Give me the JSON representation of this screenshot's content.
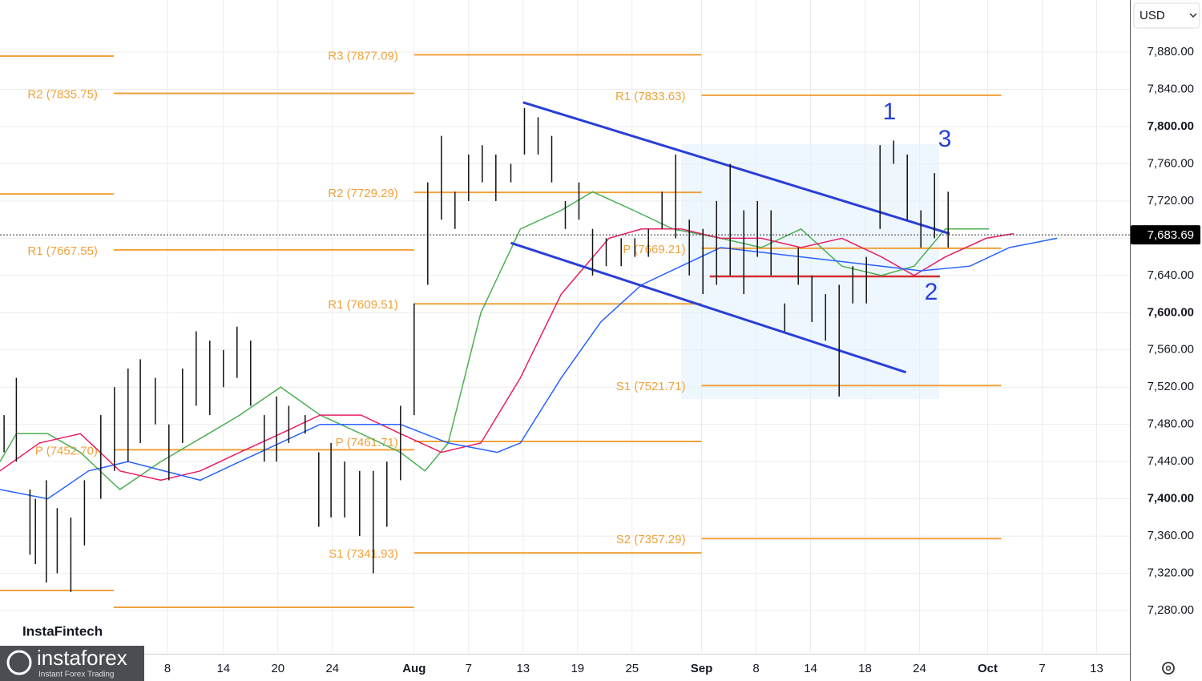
{
  "chart_data": {
    "type": "ohlc",
    "currency": "USD",
    "ylim": [
      7234.4,
      7936
    ],
    "yticks": [
      {
        "value": 7280,
        "label": "7,280.00"
      },
      {
        "value": 7320,
        "label": "7,320.00"
      },
      {
        "value": 7360,
        "label": "7,360.00"
      },
      {
        "value": 7400,
        "label": "7,400.00"
      },
      {
        "value": 7440,
        "label": "7,440.00"
      },
      {
        "value": 7480,
        "label": "7,480.00"
      },
      {
        "value": 7520,
        "label": "7,520.00"
      },
      {
        "value": 7560,
        "label": "7,560.00"
      },
      {
        "value": 7600,
        "label": "7,600.00"
      },
      {
        "value": 7640,
        "label": "7,640.00"
      },
      {
        "value": 7680,
        "label": "7,680.00"
      },
      {
        "value": 7720,
        "label": "7,720.00"
      },
      {
        "value": 7760,
        "label": "7,760.00"
      },
      {
        "value": 7800,
        "label": "7,800.00"
      },
      {
        "value": 7840,
        "label": "7,840.00"
      },
      {
        "value": 7880,
        "label": "7,880.00"
      }
    ],
    "xlim": [
      0,
      83
    ],
    "xticks": [
      {
        "value": 12.3,
        "label": "8"
      },
      {
        "value": 16.4,
        "label": "14"
      },
      {
        "value": 20.4,
        "label": "20"
      },
      {
        "value": 24.4,
        "label": "24"
      },
      {
        "value": 30.4,
        "label": "Aug"
      },
      {
        "value": 34.4,
        "label": "7"
      },
      {
        "value": 38.4,
        "label": "13"
      },
      {
        "value": 42.4,
        "label": "19"
      },
      {
        "value": 46.4,
        "label": "25"
      },
      {
        "value": 51.5,
        "label": "Sep"
      },
      {
        "value": 55.5,
        "label": "8"
      },
      {
        "value": 59.5,
        "label": "14"
      },
      {
        "value": 63.5,
        "label": "18"
      },
      {
        "value": 67.5,
        "label": "24"
      },
      {
        "value": 72.5,
        "label": "Oct"
      },
      {
        "value": 76.5,
        "label": "7"
      },
      {
        "value": 80.5,
        "label": "13"
      }
    ],
    "grid": true,
    "bar_color": "#111111",
    "bars": {
      "x": [
        0.3,
        1.2,
        2.2,
        2.6,
        3.4,
        4.2,
        5.2,
        6.2,
        7.4,
        8.4,
        9.4,
        10.3,
        11.4,
        12.4,
        13.4,
        14.4,
        15.4,
        16.4,
        17.4,
        18.4,
        19.4,
        20.3,
        21.2,
        22.4,
        23.4,
        24.3,
        25.3,
        26.4,
        27.4,
        28.4,
        29.4,
        30.4,
        31.4,
        32.4,
        33.4,
        34.4,
        35.4,
        36.4,
        37.5,
        38.5,
        39.5,
        40.5,
        41.5,
        42.5,
        43.5,
        44.5,
        45.6,
        46.6,
        47.6,
        48.6,
        49.6,
        50.6,
        51.6,
        52.6,
        53.6,
        54.6,
        55.6,
        56.6,
        57.6,
        58.6,
        59.6,
        60.6,
        61.6,
        62.6,
        63.6,
        64.6,
        65.6,
        66.6,
        67.6,
        68.6,
        69.6
      ],
      "high": [
        7490,
        7530,
        7410,
        7400,
        7420,
        7390,
        7380,
        7420,
        7490,
        7520,
        7540,
        7550,
        7530,
        7480,
        7540,
        7580,
        7570,
        7560,
        7585,
        7570,
        7490,
        7510,
        7500,
        7490,
        7450,
        7460,
        7440,
        7430,
        7430,
        7440,
        7500,
        7610,
        7740,
        7790,
        7730,
        7770,
        7780,
        7770,
        7760,
        7820,
        7810,
        7790,
        7720,
        7740,
        7690,
        7680,
        7680,
        7680,
        7690,
        7730,
        7770,
        7700,
        7690,
        7720,
        7760,
        7710,
        7720,
        7710,
        7610,
        7670,
        7640,
        7620,
        7630,
        7650,
        7660,
        7780,
        7785,
        7770,
        7710,
        7750,
        7730
      ],
      "low": [
        7450,
        7440,
        7340,
        7330,
        7310,
        7320,
        7300,
        7350,
        7400,
        7430,
        7440,
        7460,
        7480,
        7420,
        7460,
        7500,
        7490,
        7520,
        7530,
        7500,
        7440,
        7440,
        7460,
        7470,
        7370,
        7380,
        7380,
        7360,
        7320,
        7370,
        7420,
        7490,
        7630,
        7700,
        7690,
        7720,
        7740,
        7720,
        7740,
        7770,
        7770,
        7740,
        7690,
        7700,
        7640,
        7650,
        7650,
        7660,
        7660,
        7690,
        7680,
        7640,
        7620,
        7630,
        7640,
        7620,
        7660,
        7640,
        7580,
        7630,
        7590,
        7570,
        7510,
        7610,
        7610,
        7690,
        7760,
        7700,
        7670,
        7680,
        7670
      ]
    },
    "moving_averages": [
      {
        "color": "#4caf50",
        "x": [
          0,
          1.2,
          3.5,
          5.9,
          8.8,
          11.8,
          15.3,
          17.6,
          20.6,
          23.5,
          26.5,
          29.4,
          31.2,
          32.9,
          35.3,
          38.2,
          41.2,
          43.5,
          46.5,
          49.4,
          52.9,
          55.9,
          58.8,
          61.8,
          64.7,
          67.1,
          69.4,
          72.6
        ],
        "values": [
          7440,
          7470,
          7470,
          7450,
          7410,
          7440,
          7470,
          7490,
          7520,
          7490,
          7470,
          7450,
          7430,
          7460,
          7600,
          7690,
          7710,
          7730,
          7710,
          7690,
          7680,
          7670,
          7690,
          7650,
          7640,
          7650,
          7690,
          7690
        ]
      },
      {
        "color": "#e91e63",
        "x": [
          0,
          2.9,
          5.9,
          8.8,
          11.8,
          14.7,
          17.6,
          20.6,
          23.5,
          26.5,
          29.4,
          32.4,
          35.3,
          38.2,
          41.2,
          44.7,
          47.1,
          50,
          52.9,
          55.9,
          58.8,
          61.8,
          64.7,
          67.1,
          69.4,
          72.4,
          74.4
        ],
        "values": [
          7430,
          7460,
          7470,
          7430,
          7420,
          7430,
          7450,
          7470,
          7490,
          7490,
          7470,
          7450,
          7460,
          7530,
          7620,
          7680,
          7690,
          7690,
          7680,
          7680,
          7670,
          7680,
          7660,
          7640,
          7660,
          7680,
          7685
        ]
      },
      {
        "color": "#2962ff",
        "x": [
          0,
          3.5,
          6.5,
          9.4,
          14.7,
          17.6,
          23.5,
          29.4,
          32.9,
          36.5,
          38.2,
          41.2,
          44.1,
          47.1,
          50,
          52.9,
          58.8,
          64.7,
          67.6,
          71.2,
          74.1,
          77.6
        ],
        "values": [
          7410,
          7400,
          7430,
          7440,
          7420,
          7440,
          7480,
          7480,
          7460,
          7450,
          7460,
          7530,
          7590,
          7630,
          7650,
          7670,
          7660,
          7650,
          7645,
          7650,
          7670,
          7680
        ]
      }
    ],
    "trendlines": [
      {
        "color": "#2a3fd6",
        "x": [
          38.4,
          69.7
        ],
        "values": [
          7826,
          7685
        ]
      },
      {
        "color": "#2a3fd6",
        "x": [
          37.5,
          66.5
        ],
        "values": [
          7675,
          7536
        ]
      }
    ],
    "pivot_color": "#f0a23a",
    "pivots": [
      {
        "value": 7875.7,
        "x": [
          0,
          8.35
        ]
      },
      {
        "value": 7727.6,
        "x": [
          0,
          8.35
        ]
      },
      {
        "value": 7301.5,
        "x": [
          0,
          8.35
        ]
      },
      {
        "label": "R2 (7835.75)",
        "value": 7835.75,
        "x": [
          8.35,
          30.4
        ]
      },
      {
        "label": "R1 (7667.55)",
        "value": 7667.55,
        "x": [
          8.35,
          30.4
        ]
      },
      {
        "label": "P (7452.70)",
        "value": 7452.7,
        "x": [
          8.35,
          30.4
        ]
      },
      {
        "value": 7283.5,
        "x": [
          8.35,
          30.4
        ]
      },
      {
        "label": "R3 (7877.09)",
        "value": 7877.09,
        "x": [
          30.4,
          51.5
        ]
      },
      {
        "label": "R2 (7729.29)",
        "value": 7729.29,
        "x": [
          30.4,
          51.5
        ]
      },
      {
        "label": "R1 (7609.51)",
        "value": 7609.51,
        "x": [
          30.4,
          51.5
        ]
      },
      {
        "label": "P (7461.71)",
        "value": 7461.71,
        "x": [
          30.4,
          51.5
        ]
      },
      {
        "label": "S1 (7341.93)",
        "value": 7341.93,
        "x": [
          30.4,
          51.5
        ]
      },
      {
        "label": "R1 (7833.63)",
        "value": 7833.63,
        "x": [
          51.5,
          73.5
        ]
      },
      {
        "label": "P (7669.21)",
        "value": 7669.21,
        "x": [
          51.5,
          73.5
        ]
      },
      {
        "label": "S1 (7521.71)",
        "value": 7521.71,
        "x": [
          51.5,
          73.5
        ]
      },
      {
        "label": "S2 (7357.29)",
        "value": 7357.29,
        "x": [
          51.5,
          73.5
        ]
      }
    ],
    "poc": {
      "color": "#d32f2f",
      "value": 7639,
      "x": [
        52.1,
        69
      ]
    },
    "last_price": {
      "value": 7683.69,
      "label": "7,683.69"
    },
    "annotations": [
      "1",
      "2",
      "3"
    ],
    "branding": {
      "watermark": "InstaFintech",
      "logo": "instaforex",
      "tagline": "Instant Forex Trading"
    }
  }
}
